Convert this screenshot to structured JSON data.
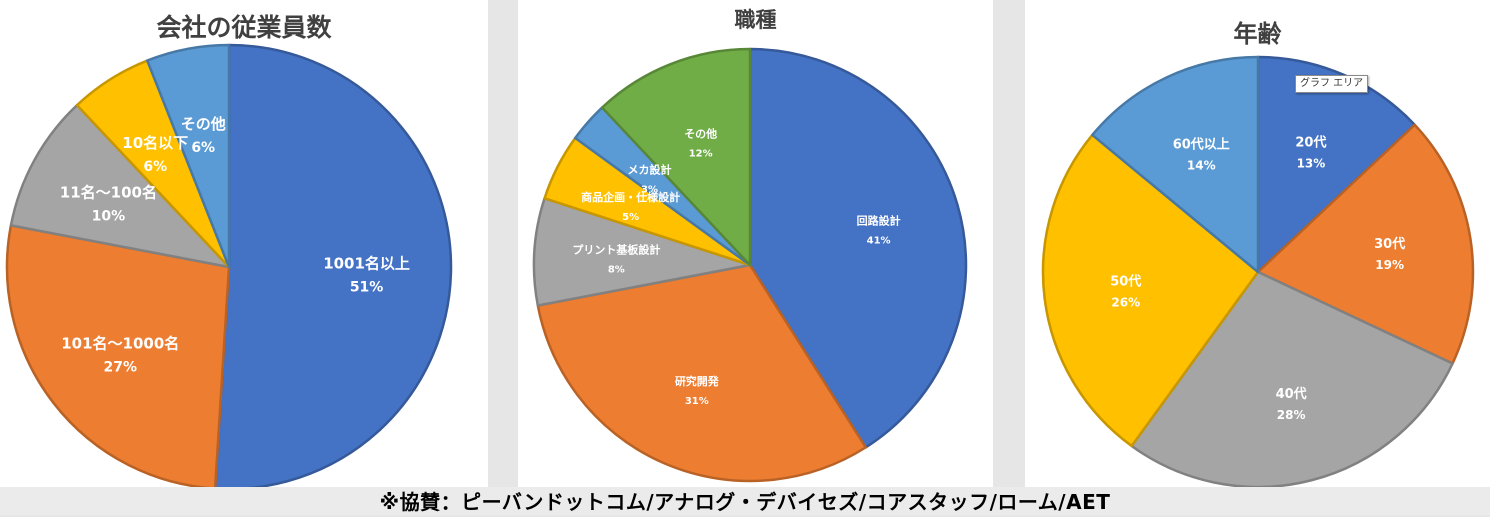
{
  "chart_data": [
    {
      "type": "pie",
      "title": "会社の従業員数",
      "categories": [
        "1001名以上",
        "101名～1000名",
        "11名～100名",
        "10名以下",
        "その他"
      ],
      "values": [
        51,
        27,
        10,
        6,
        6
      ],
      "labels": [
        "51%",
        "27%",
        "10%",
        "6%",
        "6%"
      ],
      "colors": [
        "#4472C4",
        "#ED7D31",
        "#A5A5A5",
        "#FFC000",
        "#5B9BD5"
      ]
    },
    {
      "type": "pie",
      "title": "職種",
      "categories": [
        "回路設計",
        "研究開発",
        "プリント基板設計",
        "商品企画・仕様設計",
        "メカ設計",
        "その他"
      ],
      "values": [
        41,
        31,
        8,
        5,
        3,
        12
      ],
      "labels": [
        "41%",
        "31%",
        "8%",
        "5%",
        "3%",
        "12%"
      ],
      "colors": [
        "#4472C4",
        "#ED7D31",
        "#A5A5A5",
        "#FFC000",
        "#5B9BD5",
        "#70AD47"
      ]
    },
    {
      "type": "pie",
      "title": "年齢",
      "categories": [
        "20代",
        "30代",
        "40代",
        "50代",
        "60代以上"
      ],
      "values": [
        13,
        19,
        28,
        26,
        14
      ],
      "labels": [
        "13%",
        "19%",
        "28%",
        "26%",
        "14%"
      ],
      "colors": [
        "#4472C4",
        "#ED7D31",
        "#A5A5A5",
        "#FFC000",
        "#5B9BD5"
      ]
    }
  ],
  "tooltip": "グラフ エリア",
  "footer": "※協賛：ピーバンドットコム/アナログ・デバイセズ/コアスタッフ/ローム/AET"
}
